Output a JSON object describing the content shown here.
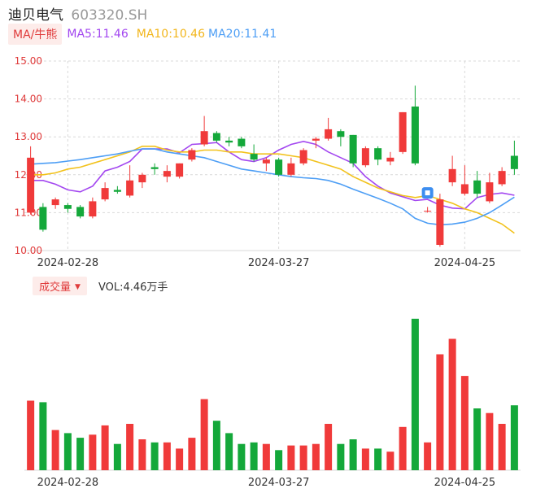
{
  "header": {
    "name": "迪贝电气",
    "code": "603320.SH"
  },
  "legend": {
    "tag": "MA/牛熊",
    "ma5": "MA5:11.46",
    "ma10": "MA10:10.46",
    "ma20": "MA20:11.41"
  },
  "volume_legend": {
    "tag": "成交量",
    "value": "VOL:4.46万手"
  },
  "colors": {
    "up": "#f03a3a",
    "down": "#14a83a",
    "ma5": "#a347f0",
    "ma10": "#f2c21c",
    "ma20": "#4d9ef5",
    "grid": "#d9d9d9"
  },
  "chart_data": {
    "type": "candlestick",
    "ylim": [
      10.0,
      15.0
    ],
    "yticks": [
      "15.00",
      "14.00",
      "13.00",
      "12.00",
      "11.00",
      "10.00"
    ],
    "xtick_labels": [
      {
        "index": 3,
        "label": "2024-02-28"
      },
      {
        "index": 20,
        "label": "2024-03-27"
      },
      {
        "index": 35,
        "label": "2024-04-25"
      }
    ],
    "candles": [
      {
        "o": 11.0,
        "c": 12.45,
        "h": 12.75,
        "l": 10.95
      },
      {
        "o": 11.15,
        "c": 10.55,
        "h": 11.25,
        "l": 10.5
      },
      {
        "o": 11.2,
        "c": 11.35,
        "h": 11.4,
        "l": 11.1
      },
      {
        "o": 11.2,
        "c": 11.1,
        "h": 11.25,
        "l": 11.0
      },
      {
        "o": 11.15,
        "c": 10.9,
        "h": 11.2,
        "l": 10.85
      },
      {
        "o": 10.9,
        "c": 11.3,
        "h": 11.4,
        "l": 10.85
      },
      {
        "o": 11.35,
        "c": 11.65,
        "h": 11.8,
        "l": 11.3
      },
      {
        "o": 11.6,
        "c": 11.55,
        "h": 11.7,
        "l": 11.5
      },
      {
        "o": 11.45,
        "c": 11.85,
        "h": 12.25,
        "l": 11.4
      },
      {
        "o": 11.8,
        "c": 12.0,
        "h": 12.05,
        "l": 11.65
      },
      {
        "o": 12.2,
        "c": 12.15,
        "h": 12.3,
        "l": 12.0
      },
      {
        "o": 11.95,
        "c": 12.1,
        "h": 12.25,
        "l": 11.8
      },
      {
        "o": 11.95,
        "c": 12.3,
        "h": 12.3,
        "l": 11.9
      },
      {
        "o": 12.4,
        "c": 12.65,
        "h": 12.7,
        "l": 12.35
      },
      {
        "o": 12.8,
        "c": 13.15,
        "h": 13.55,
        "l": 12.75
      },
      {
        "o": 13.1,
        "c": 12.9,
        "h": 13.15,
        "l": 12.85
      },
      {
        "o": 12.9,
        "c": 12.85,
        "h": 13.0,
        "l": 12.75
      },
      {
        "o": 12.95,
        "c": 12.75,
        "h": 13.0,
        "l": 12.7
      },
      {
        "o": 12.55,
        "c": 12.4,
        "h": 12.8,
        "l": 12.35
      },
      {
        "o": 12.3,
        "c": 12.4,
        "h": 12.45,
        "l": 12.1
      },
      {
        "o": 12.4,
        "c": 12.0,
        "h": 12.45,
        "l": 11.95
      },
      {
        "o": 12.0,
        "c": 12.3,
        "h": 12.45,
        "l": 11.95
      },
      {
        "o": 12.3,
        "c": 12.65,
        "h": 12.7,
        "l": 12.25
      },
      {
        "o": 12.9,
        "c": 12.95,
        "h": 13.0,
        "l": 12.7
      },
      {
        "o": 12.95,
        "c": 13.2,
        "h": 13.5,
        "l": 12.9
      },
      {
        "o": 13.15,
        "c": 13.0,
        "h": 13.2,
        "l": 12.75
      },
      {
        "o": 13.05,
        "c": 12.3,
        "h": 13.05,
        "l": 12.2
      },
      {
        "o": 12.25,
        "c": 12.7,
        "h": 12.75,
        "l": 12.2
      },
      {
        "o": 12.7,
        "c": 12.4,
        "h": 12.75,
        "l": 12.25
      },
      {
        "o": 12.35,
        "c": 12.45,
        "h": 12.6,
        "l": 12.25
      },
      {
        "o": 12.6,
        "c": 13.65,
        "h": 13.65,
        "l": 12.55
      },
      {
        "o": 13.8,
        "c": 12.3,
        "h": 14.35,
        "l": 12.25
      },
      {
        "o": 11.05,
        "c": 11.05,
        "h": 11.15,
        "l": 11.0
      },
      {
        "o": 10.15,
        "c": 11.35,
        "h": 11.5,
        "l": 10.1
      },
      {
        "o": 11.8,
        "c": 12.15,
        "h": 12.5,
        "l": 11.7
      },
      {
        "o": 11.5,
        "c": 11.75,
        "h": 12.25,
        "l": 11.45
      },
      {
        "o": 11.85,
        "c": 11.5,
        "h": 12.1,
        "l": 11.4
      },
      {
        "o": 11.3,
        "c": 11.8,
        "h": 12.05,
        "l": 11.25
      },
      {
        "o": 11.75,
        "c": 12.1,
        "h": 12.2,
        "l": 11.7
      },
      {
        "o": 12.5,
        "c": 12.15,
        "h": 12.9,
        "l": 12.0
      }
    ],
    "volumes": [
      45,
      44,
      26,
      24,
      21,
      23,
      29,
      17,
      30,
      20,
      18,
      18,
      14,
      21,
      46,
      32,
      24,
      17,
      18,
      17,
      13,
      16,
      16,
      17,
      30,
      17,
      20,
      14,
      14,
      12,
      28,
      98,
      18,
      75,
      85,
      61,
      40,
      37,
      30,
      42
    ],
    "ma5": [
      11.85,
      11.85,
      11.75,
      11.6,
      11.55,
      11.7,
      12.1,
      12.2,
      12.35,
      12.68,
      12.68,
      12.68,
      12.58,
      12.8,
      12.82,
      12.85,
      12.6,
      12.4,
      12.35,
      12.45,
      12.65,
      12.8,
      12.88,
      12.8,
      12.6,
      12.45,
      12.3,
      11.95,
      11.7,
      11.52,
      11.42,
      11.32,
      11.35,
      11.2,
      11.12,
      11.1,
      11.4,
      11.48,
      11.52,
      11.46
    ],
    "ma10": [
      12.0,
      12.0,
      12.05,
      12.15,
      12.2,
      12.3,
      12.4,
      12.5,
      12.6,
      12.75,
      12.75,
      12.65,
      12.6,
      12.6,
      12.65,
      12.65,
      12.6,
      12.6,
      12.55,
      12.55,
      12.55,
      12.5,
      12.45,
      12.35,
      12.25,
      12.15,
      11.95,
      11.8,
      11.65,
      11.55,
      11.45,
      11.4,
      11.45,
      11.35,
      11.25,
      11.1,
      11.0,
      10.85,
      10.7,
      10.46
    ],
    "ma20": [
      12.28,
      12.3,
      12.32,
      12.36,
      12.4,
      12.45,
      12.5,
      12.55,
      12.62,
      12.68,
      12.68,
      12.6,
      12.55,
      12.5,
      12.45,
      12.35,
      12.25,
      12.15,
      12.1,
      12.05,
      12.0,
      11.95,
      11.92,
      11.9,
      11.85,
      11.75,
      11.62,
      11.5,
      11.38,
      11.25,
      11.1,
      10.85,
      10.72,
      10.68,
      10.7,
      10.75,
      10.85,
      11.0,
      11.2,
      11.41
    ]
  }
}
